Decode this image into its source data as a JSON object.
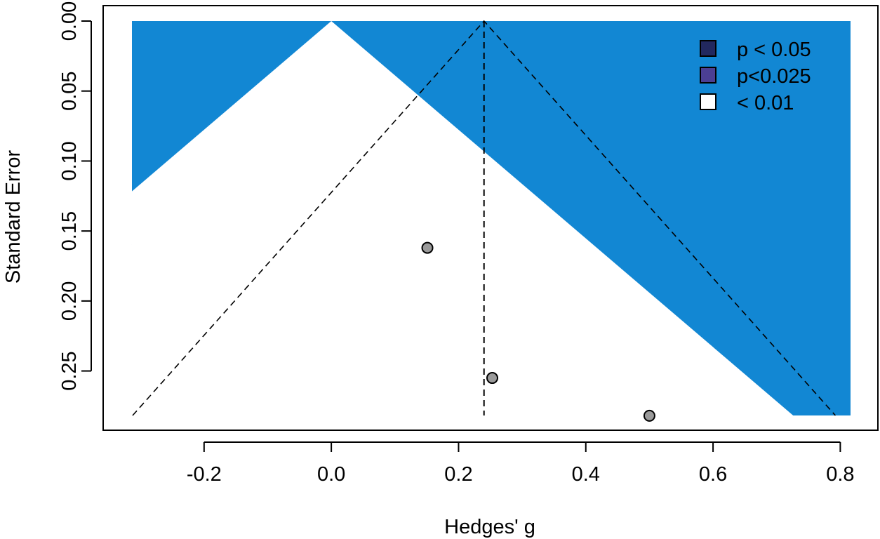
{
  "chart_data": {
    "type": "scatter",
    "subtype": "contour-enhanced funnel plot",
    "xlabel": "Hedges' g",
    "ylabel": "Standard Error",
    "xlim": [
      -0.3134,
      0.8161
    ],
    "ylim": [
      0.2818,
      0.0
    ],
    "y_reversed": true,
    "x_ticks": [
      -0.2,
      0.0,
      0.2,
      0.4,
      0.6,
      0.8
    ],
    "x_tick_labels": [
      "-0.2",
      "0.0",
      "0.2",
      "0.4",
      "0.6",
      "0.8"
    ],
    "y_ticks": [
      0.0,
      0.05,
      0.1,
      0.15,
      0.2,
      0.25
    ],
    "y_tick_labels": [
      "0.00",
      "0.05",
      "0.10",
      "0.15",
      "0.20",
      "0.25"
    ],
    "points": [
      {
        "x": 0.151,
        "y": 0.162
      },
      {
        "x": 0.253,
        "y": 0.255
      },
      {
        "x": 0.5,
        "y": 0.282
      }
    ],
    "summary_estimate": 0.24,
    "contours": [
      {
        "label": "p < 0.05",
        "z": 1.96,
        "color": "#22285f"
      },
      {
        "label": "p<0.025",
        "z": 2.241,
        "color": "#4b3f93"
      },
      {
        "label": "< 0.01",
        "z": 2.576,
        "color": "#ffffff"
      }
    ],
    "background_color": "#1287d3",
    "legend": {
      "position": "top-right",
      "entries": [
        {
          "label": "p < 0.05",
          "color": "#22285f"
        },
        {
          "label": "p<0.025",
          "color": "#4b3f93"
        },
        {
          "label": "< 0.01",
          "color": "#ffffff"
        }
      ]
    },
    "grid": false
  }
}
